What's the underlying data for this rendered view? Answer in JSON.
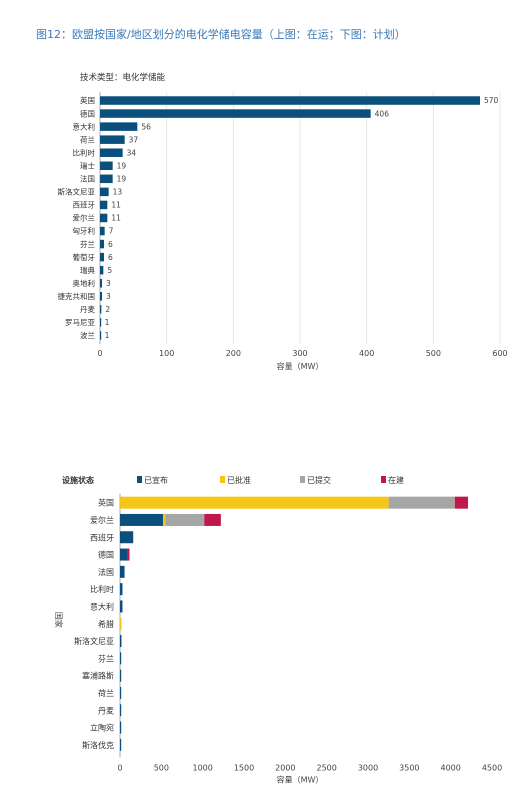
{
  "figure_title": "图12：欧盟按国家/地区划分的电化学储电容量（上图：在运；下图：计划）",
  "chart_data": [
    {
      "type": "bar",
      "orientation": "horizontal",
      "subtitle": "技术类型：电化学储能",
      "xlabel": "容量（MW）",
      "xlim": [
        0,
        600
      ],
      "xticks": [
        "0",
        "100",
        "200",
        "300",
        "400",
        "500",
        "600"
      ],
      "categories": [
        "英国",
        "德国",
        "意大利",
        "荷兰",
        "比利时",
        "瑞士",
        "法国",
        "斯洛文尼亚",
        "西班牙",
        "爱尔兰",
        "匈牙利",
        "芬兰",
        "葡萄牙",
        "瑞典",
        "奥地利",
        "捷克共和国",
        "丹麦",
        "罗马尼亚",
        "波兰"
      ],
      "values": [
        570,
        406,
        56,
        37,
        34,
        19,
        19,
        13,
        11,
        11,
        7,
        6,
        6,
        5,
        3,
        3,
        2,
        1,
        1
      ],
      "bar_color": "#0b4f7c",
      "grid": true
    },
    {
      "type": "bar",
      "orientation": "horizontal",
      "stacked": true,
      "legend_title": "设施状态",
      "legend_position": "top",
      "ylabel": "国家",
      "xlabel": "容量（MW）",
      "xlim": [
        0,
        4500
      ],
      "xticks": [
        "0",
        "500",
        "1000",
        "1500",
        "2000",
        "2500",
        "3000",
        "3500",
        "4000",
        "4500"
      ],
      "categories": [
        "英国",
        "爱尔兰",
        "西班牙",
        "德国",
        "法国",
        "比利时",
        "意大利",
        "希腊",
        "斯洛文尼亚",
        "芬兰",
        "塞浦路斯",
        "荷兰",
        "丹麦",
        "立陶宛",
        "斯洛伐克"
      ],
      "series": [
        {
          "name": "已宣布",
          "color": "#0b4f7c",
          "values": [
            0,
            520,
            160,
            90,
            55,
            30,
            30,
            0,
            18,
            8,
            4,
            3,
            3,
            2,
            2
          ]
        },
        {
          "name": "已批准",
          "color": "#f5c518",
          "values": [
            3250,
            30,
            0,
            0,
            0,
            0,
            0,
            18,
            0,
            0,
            0,
            0,
            0,
            0,
            0
          ]
        },
        {
          "name": "已提交",
          "color": "#a6a6a6",
          "values": [
            800,
            470,
            0,
            0,
            0,
            0,
            0,
            0,
            0,
            0,
            0,
            0,
            0,
            0,
            0
          ]
        },
        {
          "name": "在建",
          "color": "#c0174c",
          "values": [
            160,
            200,
            0,
            25,
            0,
            0,
            0,
            0,
            0,
            0,
            0,
            0,
            0,
            0,
            0
          ]
        }
      ]
    }
  ]
}
